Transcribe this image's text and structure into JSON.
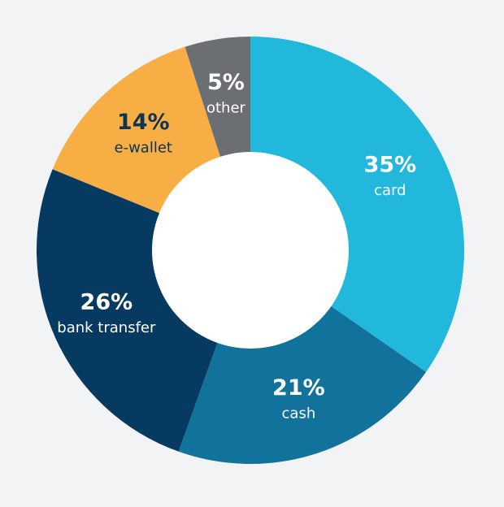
{
  "chart_data": {
    "type": "pie",
    "variant": "donut",
    "legend": "none",
    "slices": [
      {
        "name": "card",
        "value": 35,
        "pct_label": "35%",
        "color": "#22b8dc",
        "label_color": "#ffffff"
      },
      {
        "name": "cash",
        "value": 21,
        "pct_label": "21%",
        "color": "#11729b",
        "label_color": "#ffffff"
      },
      {
        "name": "bank transfer",
        "value": 26,
        "pct_label": "26%",
        "color": "#073a60",
        "label_color": "#ffffff"
      },
      {
        "name": "e-wallet",
        "value": 14,
        "pct_label": "14%",
        "color": "#f7ae45",
        "label_color": "#0d3453"
      },
      {
        "name": "other",
        "value": 5,
        "pct_label": "5%",
        "color": "#6b6e72",
        "label_color": "#ffffff"
      }
    ]
  },
  "colors": {
    "background": "#f1f3f5",
    "hole": "#ffffff"
  }
}
